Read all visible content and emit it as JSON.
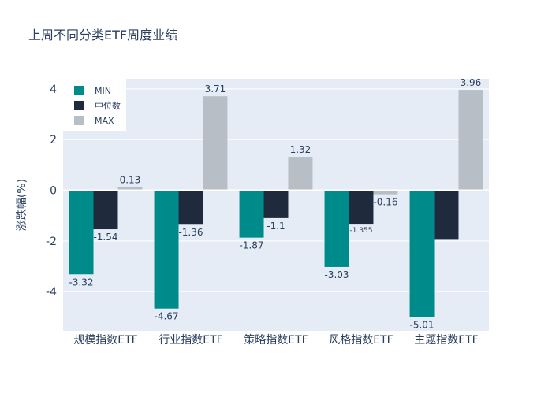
{
  "chart_data": {
    "type": "bar",
    "title": "上周不同分类ETF周度业绩",
    "xlabel": "",
    "ylabel": "涨跌幅(%)",
    "categories": [
      "规模指数ETF",
      "行业指数ETF",
      "策略指数ETF",
      "风格指数ETF",
      "主题指数ETF"
    ],
    "series": [
      {
        "name": "MIN",
        "color": "#008b8b",
        "values": [
          -3.32,
          -4.67,
          -1.87,
          -3.03,
          -5.01
        ],
        "labels": [
          "-3.32",
          "-4.67",
          "-1.87",
          "-3.03",
          "-5.01"
        ]
      },
      {
        "name": "中位数",
        "color": "#1f2a3c",
        "values": [
          -1.54,
          -1.36,
          -1.1,
          -1.355,
          -1.955
        ],
        "labels": [
          "-1.54",
          "-1.36",
          "-1.1",
          "-1.355",
          ""
        ]
      },
      {
        "name": "MAX",
        "color": "#b7bec6",
        "values": [
          0.13,
          3.71,
          1.32,
          -0.16,
          3.96
        ],
        "labels": [
          "0.13",
          "3.71",
          "1.32",
          "-0.16",
          "3.96"
        ]
      }
    ],
    "ylim": [
      -5.55,
      4.4
    ],
    "yticks": [
      -4,
      -2,
      0,
      2,
      4
    ],
    "grid": true,
    "legend_position": "top-left",
    "plot_bg": "#e5ecf6"
  }
}
